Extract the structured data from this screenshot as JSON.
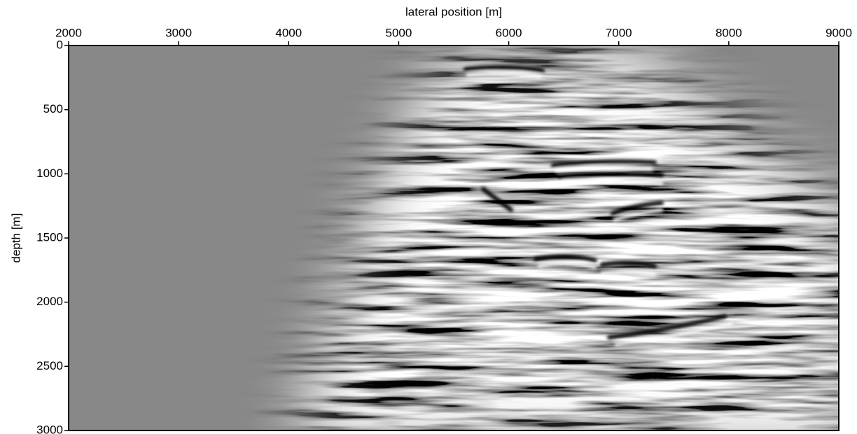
{
  "chart_data": {
    "type": "image",
    "xlabel": "lateral position [m]",
    "ylabel": "depth [m]",
    "xlim": [
      2000,
      9000
    ],
    "xticks": [
      2000,
      3000,
      4000,
      5000,
      6000,
      7000,
      8000,
      9000
    ],
    "ylim": [
      3000,
      0
    ],
    "yticks": [
      0,
      500,
      1000,
      1500,
      2000,
      2500,
      3000
    ]
  }
}
